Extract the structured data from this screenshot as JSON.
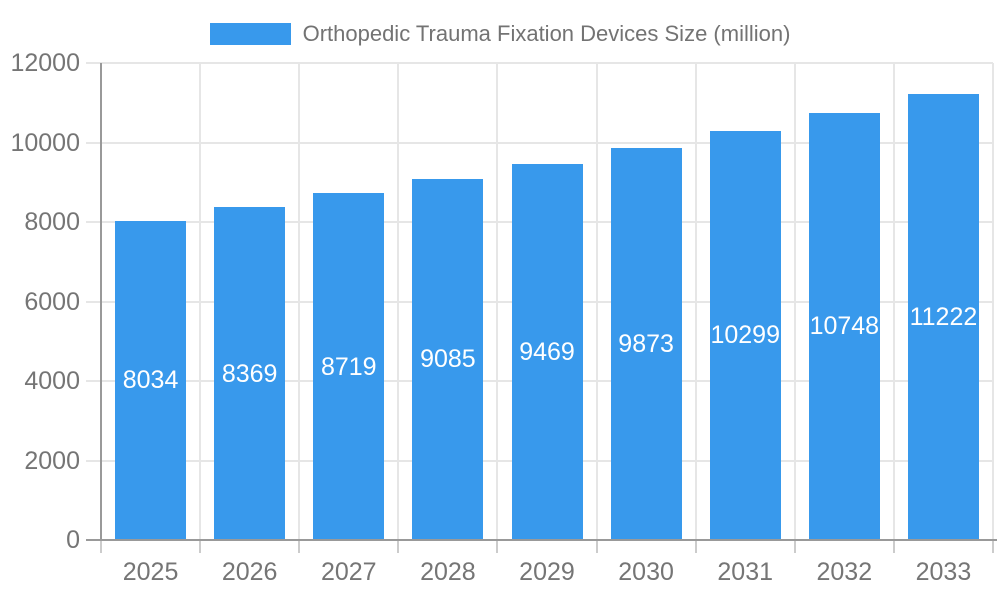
{
  "colors": {
    "bar": "#3899EC",
    "grid": "#E6E6E6",
    "axis": "#999999",
    "x_tick": "#CCCCCC",
    "axis_text": "#757575",
    "legend_text": "#737373",
    "value_text": "#FFFFFF",
    "background": "#FFFFFF"
  },
  "chart_data": {
    "type": "bar",
    "title": "",
    "series_name": "Orthopedic Trauma Fixation Devices Size (million)",
    "categories": [
      "2025",
      "2026",
      "2027",
      "2028",
      "2029",
      "2030",
      "2031",
      "2032",
      "2033"
    ],
    "values": [
      8034,
      8369,
      8719,
      9085,
      9469,
      9873,
      10299,
      10748,
      11222
    ],
    "xlabel": "",
    "ylabel": "",
    "ylim": [
      0,
      12000
    ],
    "y_ticks": [
      0,
      2000,
      4000,
      6000,
      8000,
      10000,
      12000
    ],
    "grid": true,
    "legend_position": "top-center",
    "value_label_position": "inside-middle"
  }
}
